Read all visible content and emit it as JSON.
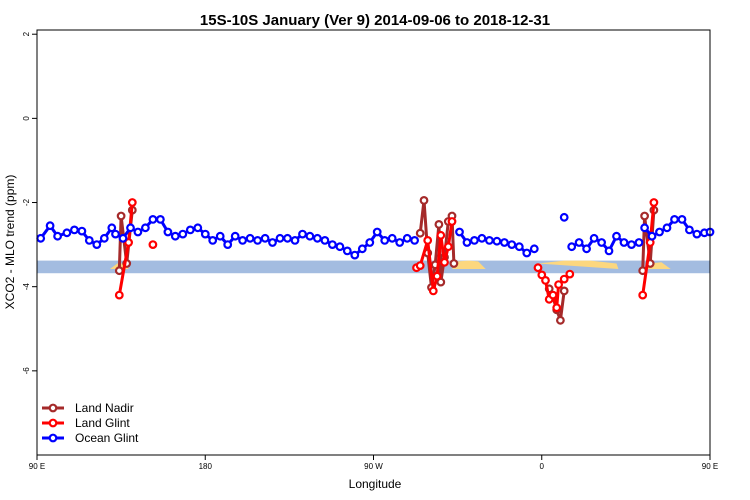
{
  "chart_data": {
    "type": "line",
    "title": "15S-10S January (Ver 9)   2014-09-06 to 2018-12-31",
    "xlabel": "Longitude",
    "ylabel": "XCO2 - MLO trend (ppm)",
    "xlim": [
      90,
      450
    ],
    "ylim": [
      -8,
      2.1
    ],
    "x_ticks": [
      {
        "value": 90,
        "label": "90 E"
      },
      {
        "value": 180,
        "label": "180"
      },
      {
        "value": 270,
        "label": "90 W"
      },
      {
        "value": 360,
        "label": "0"
      },
      {
        "value": 450,
        "label": "90 E"
      },
      {
        "value": 540,
        "label": "180"
      }
    ],
    "y_ticks": [
      {
        "value": 2,
        "label": "2"
      },
      {
        "value": 0,
        "label": "0"
      },
      {
        "value": -2,
        "label": "-2"
      },
      {
        "value": -4,
        "label": "-4"
      },
      {
        "value": -6,
        "label": "-6"
      }
    ],
    "band": {
      "color": "#a3bce0",
      "y_range": [
        -3.68,
        -3.38
      ],
      "x_range": [
        90,
        450
      ]
    },
    "shaded_regions": {
      "color": "#fcd77f",
      "regions": [
        [
          [
            129,
            -3.58
          ],
          [
            133,
            -3.45
          ],
          [
            137,
            -3.45
          ],
          [
            139,
            -3.58
          ]
        ],
        [
          [
            312,
            -3.58
          ],
          [
            315,
            -3.4
          ],
          [
            321,
            -3.38
          ],
          [
            326,
            -3.4
          ],
          [
            330,
            -3.58
          ]
        ],
        [
          [
            358,
            -3.45
          ],
          [
            372,
            -3.38
          ],
          [
            386,
            -3.38
          ],
          [
            400,
            -3.45
          ],
          [
            401,
            -3.58
          ]
        ],
        [
          [
            414,
            -3.58
          ],
          [
            418,
            -3.45
          ],
          [
            424,
            -3.42
          ],
          [
            429,
            -3.58
          ]
        ]
      ]
    },
    "series": [
      {
        "name": "Land Nadir",
        "color": "#a52a2a",
        "segments": [
          {
            "x": [
              134,
              135,
              138,
              141
            ],
            "y": [
              -3.62,
              -2.32,
              -3.45,
              -2.18
            ]
          },
          {
            "x": [
              295,
              297,
              299,
              301,
              303,
              305,
              306,
              308,
              310,
              312,
              313
            ],
            "y": [
              -2.73,
              -1.95,
              -3.2,
              -4.02,
              -3.48,
              -2.52,
              -3.89,
              -3.3,
              -2.45,
              -2.32,
              -3.45
            ]
          },
          {
            "x": [
              364,
              366,
              368,
              370,
              372
            ],
            "y": [
              -4.05,
              -4.25,
              -4.55,
              -4.8,
              -4.1
            ]
          },
          {
            "x": [
              414,
              415,
              418,
              420
            ],
            "y": [
              -3.62,
              -2.32,
              -3.45,
              -2.18
            ]
          }
        ]
      },
      {
        "name": "Land Glint",
        "color": "#ff0000",
        "segments": [
          {
            "x": [
              134,
              139,
              141
            ],
            "y": [
              -4.2,
              -2.95,
              -2.0
            ]
          },
          {
            "x": [
              293,
              295,
              299,
              302,
              304,
              306,
              308,
              310,
              312
            ],
            "y": [
              -3.55,
              -3.5,
              -2.9,
              -4.1,
              -3.75,
              -2.78,
              -3.42,
              -3.05,
              -2.45
            ]
          },
          {
            "x": [
              152
            ],
            "y": [
              -3.0
            ]
          },
          {
            "x": [
              358,
              360,
              362,
              364,
              366,
              368,
              369,
              372
            ],
            "y": [
              -3.55,
              -3.72,
              -3.85,
              -4.3,
              -4.2,
              -4.5,
              -3.95,
              -3.82
            ]
          },
          {
            "x": [
              375
            ],
            "y": [
              -3.7
            ]
          },
          {
            "x": [
              414,
              418,
              420
            ],
            "y": [
              -4.2,
              -2.95,
              -2.0
            ]
          }
        ]
      },
      {
        "name": "Ocean Glint",
        "color": "#0000ff",
        "segments": [
          {
            "x": [
              92,
              97,
              101,
              106,
              110,
              114,
              118,
              122,
              126,
              130
            ],
            "y": [
              -2.85,
              -2.55,
              -2.8,
              -2.72,
              -2.65,
              -2.68,
              -2.9,
              -3.0,
              -2.85,
              -2.6
            ]
          },
          {
            "x": [
              132,
              136,
              140,
              144,
              148,
              152,
              156,
              160,
              164,
              168,
              172,
              176,
              180,
              184,
              188,
              192,
              196,
              200,
              204,
              208,
              212,
              216,
              220,
              224,
              228,
              232,
              236,
              240,
              244,
              248,
              252,
              256,
              260,
              264,
              268,
              272,
              276,
              280,
              284,
              288,
              292
            ],
            "y": [
              -2.75,
              -2.85,
              -2.6,
              -2.7,
              -2.6,
              -2.4,
              -2.4,
              -2.7,
              -2.8,
              -2.75,
              -2.65,
              -2.6,
              -2.75,
              -2.9,
              -2.8,
              -3.0,
              -2.8,
              -2.9,
              -2.85,
              -2.9,
              -2.85,
              -2.95,
              -2.85,
              -2.85,
              -2.9,
              -2.75,
              -2.8,
              -2.85,
              -2.9,
              -3.0,
              -3.05,
              -3.15,
              -3.25,
              -3.1,
              -2.95,
              -2.7,
              -2.9,
              -2.85,
              -2.95,
              -2.85,
              -2.9
            ]
          },
          {
            "x": [
              316,
              320,
              324,
              328,
              332,
              336,
              340,
              344,
              348,
              352,
              356
            ],
            "y": [
              -2.7,
              -2.95,
              -2.9,
              -2.85,
              -2.9,
              -2.92,
              -2.95,
              -3.0,
              -3.05,
              -3.2,
              -3.1
            ]
          },
          {
            "x": [
              376,
              380,
              384,
              388,
              392,
              396,
              400,
              404,
              408,
              412
            ],
            "y": [
              -3.05,
              -2.95,
              -3.1,
              -2.85,
              -2.95,
              -3.15,
              -2.8,
              -2.95,
              -3.0,
              -2.95
            ]
          },
          {
            "x": [
              415,
              419,
              423,
              427,
              431,
              435,
              439,
              443,
              447,
              450
            ],
            "y": [
              -2.6,
              -2.8,
              -2.7,
              -2.6,
              -2.4,
              -2.4,
              -2.65,
              -2.75,
              -2.72,
              -2.7
            ]
          }
        ]
      }
    ],
    "extra_points": [
      {
        "series": "Ocean Glint",
        "x": [
          372
        ],
        "y": [
          -2.35
        ]
      }
    ],
    "legend": {
      "position": "bottom-left",
      "entries": [
        "Land Nadir",
        "Land Glint",
        "Ocean Glint"
      ]
    }
  }
}
